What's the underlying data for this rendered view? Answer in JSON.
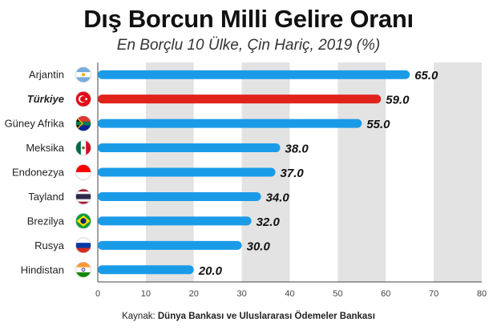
{
  "title": "Dış Borcun Milli Gelire Oranı",
  "subtitle": "En Borçlu 10 Ülke, Çin Hariç, 2019 (%)",
  "source_prefix": "Kaynak: ",
  "source_text": "Dünya Bankası ve Uluslararası Ödemeler Bankası",
  "colors": {
    "bar": "#1a9be8",
    "highlight": "#e0231b",
    "band": "#e3e3e3",
    "axis": "#444444"
  },
  "chart_data": {
    "type": "bar",
    "orientation": "horizontal",
    "categories": [
      "Arjantin",
      "Türkiye",
      "Güney Afrika",
      "Meksika",
      "Endonezya",
      "Tayland",
      "Brezilya",
      "Rusya",
      "Hindistan"
    ],
    "values": [
      65.0,
      59.0,
      55.0,
      38.0,
      37.0,
      34.0,
      32.0,
      30.0,
      20.0
    ],
    "value_labels": [
      "65.0",
      "59.0",
      "55.0",
      "38.0",
      "37.0",
      "34.0",
      "32.0",
      "30.0",
      "20.0"
    ],
    "highlight": "Türkiye",
    "flag_icons": [
      "argentina-flag-icon",
      "turkey-flag-icon",
      "south-africa-flag-icon",
      "mexico-flag-icon",
      "indonesia-flag-icon",
      "thailand-flag-icon",
      "brazil-flag-icon",
      "russia-flag-icon",
      "india-flag-icon"
    ],
    "xlim": [
      0,
      80
    ],
    "xticks": [
      "0",
      "10",
      "20",
      "30",
      "40",
      "50",
      "60",
      "70",
      "80"
    ],
    "grid": "alternating vertical bands"
  }
}
